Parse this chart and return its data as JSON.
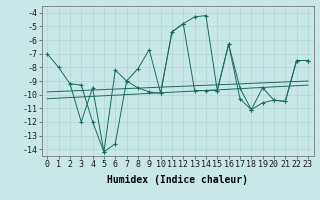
{
  "bg_color": "#c8e8e8",
  "grid_color": "#b0d8d0",
  "line_color": "#1a6b5a",
  "xlabel": "Humidex (Indice chaleur)",
  "xlim": [
    -0.5,
    23.5
  ],
  "ylim": [
    -14.5,
    -3.5
  ],
  "yticks": [
    -14,
    -13,
    -12,
    -11,
    -10,
    -9,
    -8,
    -7,
    -6,
    -5,
    -4
  ],
  "xtick_positions": [
    0,
    1,
    2,
    3,
    4,
    5,
    6,
    7,
    8,
    9,
    10,
    11,
    12,
    13,
    14,
    15,
    16,
    17,
    18,
    19,
    20,
    21,
    22,
    23
  ],
  "xtick_labels": [
    "0",
    "1",
    "2",
    "3",
    "4",
    "5",
    "6",
    "7",
    "8",
    "9",
    "10",
    "11",
    "12",
    "13",
    "14",
    "15",
    "16",
    "17",
    "18",
    "19",
    "20",
    "21",
    "22",
    "23"
  ],
  "fontsize_tick": 6,
  "fontsize_label": 7,
  "line1_x": [
    0,
    1,
    2,
    3,
    4,
    5,
    6,
    7,
    8,
    9,
    10,
    11,
    12,
    13,
    14,
    15,
    16,
    17,
    18,
    19,
    20,
    21,
    22,
    23
  ],
  "line1_y": [
    -7.0,
    -8.0,
    -9.2,
    -12.0,
    -9.5,
    -14.2,
    -8.2,
    -9.0,
    -8.1,
    -6.7,
    -9.9,
    -5.4,
    -4.8,
    -4.3,
    -4.2,
    -9.7,
    -6.3,
    -9.5,
    -11.1,
    -9.5,
    -10.4,
    -10.5,
    -7.5,
    -7.5
  ],
  "line2_x": [
    2,
    3,
    4,
    5,
    6,
    7,
    8,
    9,
    10,
    11,
    12,
    13,
    14,
    15,
    16,
    17,
    18,
    19,
    20,
    21,
    22,
    23
  ],
  "line2_y": [
    -9.2,
    -9.3,
    -12.0,
    -14.2,
    -13.6,
    -9.0,
    -9.5,
    -9.8,
    -9.9,
    -5.4,
    -4.8,
    -9.7,
    -9.7,
    -9.7,
    -6.3,
    -10.3,
    -11.1,
    -10.6,
    -10.4,
    -10.5,
    -7.5,
    -7.5
  ],
  "trend1_x": [
    0,
    23
  ],
  "trend1_y": [
    -9.8,
    -9.0
  ],
  "trend2_x": [
    0,
    23
  ],
  "trend2_y": [
    -10.3,
    -9.3
  ]
}
